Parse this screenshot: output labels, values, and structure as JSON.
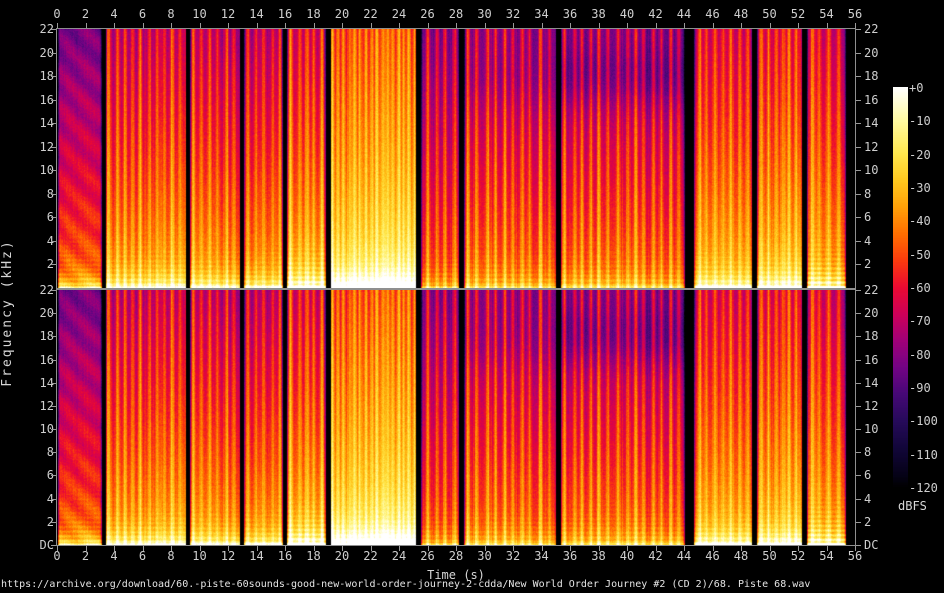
{
  "footer": {
    "source_text": "https://archive.org/download/60.-piste-60sounds-good-new-world-order-journey-2-cdda/New World Order Journey #2 (CD 2)/68. Piste 68.wav"
  },
  "chart_data": {
    "type": "heatmap",
    "subtype": "stereo-audio-spectrogram",
    "channels": 2,
    "xlabel": "Time (s)",
    "ylabel": "Frequency (kHz)",
    "colorbar_label": "dBFS",
    "x_range_s": [
      0,
      56
    ],
    "x_tick_step_s": 2,
    "x_tick_labels": [
      "0",
      "2",
      "4",
      "6",
      "8",
      "10",
      "12",
      "14",
      "16",
      "18",
      "20",
      "22",
      "24",
      "26",
      "28",
      "30",
      "32",
      "34",
      "36",
      "38",
      "40",
      "42",
      "44",
      "46",
      "48",
      "50",
      "52",
      "54",
      "56"
    ],
    "y_range_khz": [
      0,
      22
    ],
    "panel1_y_tick_labels": [
      "22",
      "20",
      "18",
      "16",
      "14",
      "12",
      "10",
      "8",
      "6",
      "4",
      "2"
    ],
    "panel2_y_tick_labels": [
      "22",
      "20",
      "18",
      "16",
      "14",
      "12",
      "10",
      "8",
      "6",
      "4",
      "2",
      "DC"
    ],
    "colorbar_range_db": [
      0,
      -120
    ],
    "colorbar_tick_labels": [
      "+0",
      "-10",
      "-20",
      "-30",
      "-40",
      "-50",
      "-60",
      "-70",
      "-80",
      "-90",
      "-100",
      "-110",
      "-120"
    ],
    "grid": false,
    "legend_position": "right-colorbar",
    "palette_stops_db_rgb": [
      [
        0,
        [
          255,
          255,
          255
        ]
      ],
      [
        -10,
        [
          255,
          250,
          160
        ]
      ],
      [
        -20,
        [
          255,
          231,
          76
        ]
      ],
      [
        -28,
        [
          255,
          200,
          30
        ]
      ],
      [
        -36,
        [
          255,
          160,
          8
        ]
      ],
      [
        -44,
        [
          255,
          110,
          0
        ]
      ],
      [
        -52,
        [
          250,
          58,
          14
        ]
      ],
      [
        -60,
        [
          235,
          10,
          50
        ]
      ],
      [
        -68,
        [
          205,
          0,
          88
        ]
      ],
      [
        -76,
        [
          160,
          0,
          120
        ]
      ],
      [
        -84,
        [
          115,
          3,
          133
        ]
      ],
      [
        -92,
        [
          70,
          8,
          118
        ]
      ],
      [
        -100,
        [
          38,
          10,
          90
        ]
      ],
      [
        -108,
        [
          18,
          6,
          58
        ]
      ],
      [
        -116,
        [
          6,
          2,
          25
        ]
      ],
      [
        -120,
        [
          0,
          0,
          0
        ]
      ]
    ],
    "audio_segments_s": [
      {
        "t0": 0.06,
        "t1": 3.09,
        "base_db": -45,
        "rolloff_db": 40,
        "low_db": 26,
        "mid_db": 2,
        "harm_db": 7,
        "micro_db": 3,
        "beat_p_s": 0,
        "beat_amp_db": 0,
        "wobble_db": 5,
        "top_dip_db": 0
      },
      {
        "t0": 3.37,
        "t1": 9.05,
        "base_db": -38,
        "rolloff_db": 38,
        "low_db": 26,
        "mid_db": 4,
        "harm_db": 5,
        "micro_db": 9,
        "beat_p_s": 0.55,
        "beat_amp_db": 15,
        "wobble_db": 0,
        "top_dip_db": 0
      },
      {
        "t0": 9.33,
        "t1": 12.84,
        "base_db": -40,
        "rolloff_db": 38,
        "low_db": 26,
        "mid_db": 3,
        "harm_db": 5,
        "micro_db": 8,
        "beat_p_s": 0.55,
        "beat_amp_db": 15,
        "wobble_db": 0,
        "top_dip_db": 0
      },
      {
        "t0": 13.12,
        "t1": 15.79,
        "base_db": -40,
        "rolloff_db": 38,
        "low_db": 26,
        "mid_db": 3,
        "harm_db": 5,
        "micro_db": 8,
        "beat_p_s": 0.55,
        "beat_amp_db": 14,
        "wobble_db": 0,
        "top_dip_db": 0
      },
      {
        "t0": 16.14,
        "t1": 18.81,
        "base_db": -36,
        "rolloff_db": 36,
        "low_db": 28,
        "mid_db": 10,
        "harm_db": 8,
        "micro_db": 8,
        "beat_p_s": 0.55,
        "beat_amp_db": 14,
        "wobble_db": 0,
        "top_dip_db": 0
      },
      {
        "t0": 19.16,
        "t1": 25.19,
        "base_db": -29,
        "rolloff_db": 33,
        "low_db": 28,
        "mid_db": 13,
        "harm_db": 4,
        "micro_db": 9,
        "beat_p_s": 0.38,
        "beat_amp_db": 16,
        "wobble_db": 0,
        "top_dip_db": 0
      },
      {
        "t0": 25.54,
        "t1": 28.21,
        "base_db": -48,
        "rolloff_db": 36,
        "low_db": 18,
        "mid_db": 0,
        "harm_db": 4,
        "micro_db": 10,
        "beat_p_s": 0.7,
        "beat_amp_db": 18,
        "wobble_db": 0,
        "top_dip_db": 0
      },
      {
        "t0": 28.56,
        "t1": 34.95,
        "base_db": -47,
        "rolloff_db": 37,
        "low_db": 18,
        "mid_db": 0,
        "harm_db": 4,
        "micro_db": 9,
        "beat_p_s": 0.62,
        "beat_amp_db": 20,
        "wobble_db": 0,
        "top_dip_db": 4
      },
      {
        "t0": 35.3,
        "t1": 44.0,
        "base_db": -47,
        "rolloff_db": 39,
        "low_db": 18,
        "mid_db": 0,
        "harm_db": 4,
        "micro_db": 9,
        "beat_p_s": 0.62,
        "beat_amp_db": 20,
        "wobble_db": 0,
        "top_dip_db": 10
      },
      {
        "t0": 44.7,
        "t1": 48.77,
        "base_db": -37,
        "rolloff_db": 36,
        "low_db": 26,
        "mid_db": 5,
        "harm_db": 5,
        "micro_db": 8,
        "beat_p_s": 0.58,
        "beat_amp_db": 14,
        "wobble_db": 0,
        "top_dip_db": 0
      },
      {
        "t0": 49.12,
        "t1": 52.28,
        "base_db": -33,
        "rolloff_db": 35,
        "low_db": 26,
        "mid_db": 8,
        "harm_db": 5,
        "micro_db": 8,
        "beat_p_s": 0.5,
        "beat_amp_db": 14,
        "wobble_db": 0,
        "top_dip_db": 0
      },
      {
        "t0": 52.63,
        "t1": 55.3,
        "base_db": -39,
        "rolloff_db": 36,
        "low_db": 28,
        "mid_db": 4,
        "harm_db": 11,
        "micro_db": 8,
        "beat_p_s": 0.62,
        "beat_amp_db": 16,
        "wobble_db": 0,
        "top_dip_db": 0
      }
    ]
  },
  "colors": {
    "background": "#000000",
    "axis_line": "#8f8f8f",
    "tick_mark": "#9a9a9a",
    "tick_text": "#cfcfcf",
    "label_text": "#d6d6d6",
    "url_text": "#e6e6e6"
  }
}
